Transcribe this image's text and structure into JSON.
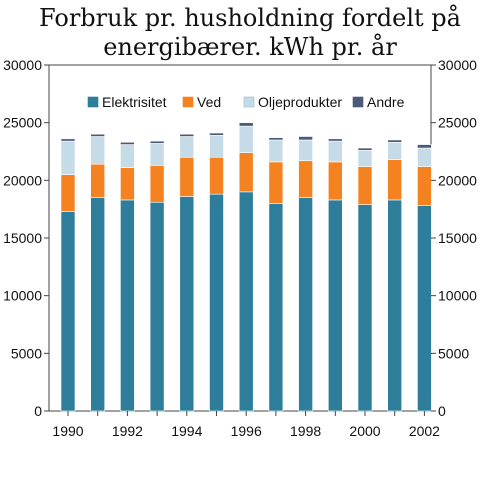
{
  "chart_data": {
    "type": "bar",
    "stacked": true,
    "title_lines": [
      "Forbruk pr. husholdning fordelt på",
      "energibærer. kWh pr. år"
    ],
    "xlabel": "",
    "ylabel": "",
    "ylim": [
      0,
      30000
    ],
    "yticks": [
      "0",
      "5000",
      "10000",
      "15000",
      "20000",
      "25000",
      "30000"
    ],
    "x_tick_labels": [
      "1990",
      "1992",
      "1994",
      "1996",
      "1998",
      "2000",
      "2002"
    ],
    "categories": [
      "1990",
      "1991",
      "1992",
      "1993",
      "1994",
      "1995",
      "1996",
      "1997",
      "1998",
      "1999",
      "2000",
      "2001",
      "2002"
    ],
    "legend_position": "top-inside",
    "grid": false,
    "series": [
      {
        "name": "Elektrisitet",
        "color": "#2e7d9a",
        "values": [
          17300,
          18500,
          18300,
          18100,
          18600,
          18800,
          19000,
          18000,
          18500,
          18300,
          17900,
          18300,
          17800
        ]
      },
      {
        "name": "Ved",
        "color": "#f58220",
        "values": [
          3200,
          2900,
          2800,
          3200,
          3400,
          3200,
          3400,
          3600,
          3200,
          3300,
          3300,
          3500,
          3400
        ]
      },
      {
        "name": "Oljeprodukter",
        "color": "#c5dbe8",
        "values": [
          2900,
          2400,
          2000,
          1900,
          1800,
          1900,
          2300,
          1900,
          1800,
          1800,
          1400,
          1500,
          1600
        ]
      },
      {
        "name": "Andre",
        "color": "#4c5a78",
        "values": [
          200,
          200,
          200,
          200,
          200,
          200,
          300,
          200,
          300,
          200,
          200,
          200,
          300
        ]
      }
    ]
  }
}
